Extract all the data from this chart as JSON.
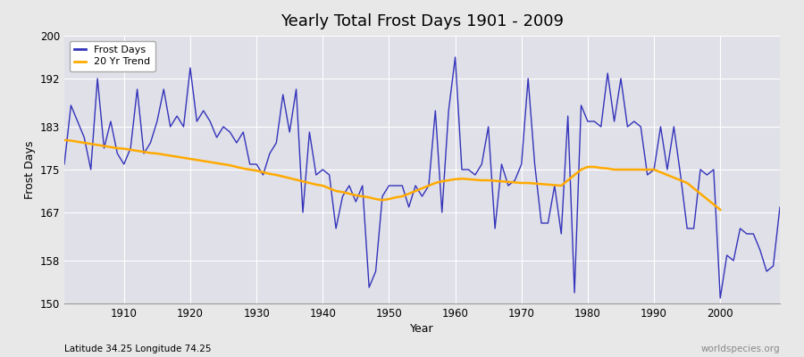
{
  "title": "Yearly Total Frost Days 1901 - 2009",
  "xlabel": "Year",
  "ylabel": "Frost Days",
  "subtitle": "Latitude 34.25 Longitude 74.25",
  "watermark": "worldspecies.org",
  "ylim": [
    150,
    200
  ],
  "yticks": [
    150,
    158,
    167,
    175,
    183,
    192,
    200
  ],
  "fig_bg": "#e8e8e8",
  "plot_bg": "#e0e0e8",
  "grid_color": "#ffffff",
  "line_color": "#3333bb",
  "trend_color": "#ffaa00",
  "years": [
    1901,
    1902,
    1903,
    1904,
    1905,
    1906,
    1907,
    1908,
    1909,
    1910,
    1911,
    1912,
    1913,
    1914,
    1915,
    1916,
    1917,
    1918,
    1919,
    1920,
    1921,
    1922,
    1923,
    1924,
    1925,
    1926,
    1927,
    1928,
    1929,
    1930,
    1931,
    1932,
    1933,
    1934,
    1935,
    1936,
    1937,
    1938,
    1939,
    1940,
    1941,
    1942,
    1943,
    1944,
    1945,
    1946,
    1947,
    1948,
    1949,
    1950,
    1951,
    1952,
    1953,
    1954,
    1955,
    1956,
    1957,
    1958,
    1959,
    1960,
    1961,
    1962,
    1963,
    1964,
    1965,
    1966,
    1967,
    1968,
    1969,
    1970,
    1971,
    1972,
    1973,
    1974,
    1975,
    1976,
    1977,
    1978,
    1979,
    1980,
    1981,
    1982,
    1983,
    1984,
    1985,
    1986,
    1987,
    1988,
    1989,
    1990,
    1991,
    1992,
    1993,
    1994,
    1995,
    1996,
    1997,
    1998,
    1999,
    2000,
    2001,
    2002,
    2003,
    2004,
    2005,
    2006,
    2007,
    2008,
    2009
  ],
  "frost_days": [
    176,
    187,
    184,
    181,
    175,
    192,
    179,
    184,
    178,
    176,
    179,
    190,
    178,
    180,
    184,
    190,
    183,
    185,
    183,
    194,
    184,
    186,
    184,
    181,
    183,
    182,
    180,
    182,
    176,
    176,
    174,
    178,
    180,
    189,
    182,
    190,
    167,
    182,
    174,
    175,
    174,
    164,
    170,
    172,
    169,
    172,
    153,
    156,
    170,
    172,
    172,
    172,
    168,
    172,
    170,
    172,
    186,
    167,
    186,
    196,
    175,
    175,
    174,
    176,
    183,
    164,
    176,
    172,
    173,
    176,
    192,
    176,
    165,
    165,
    172,
    163,
    185,
    152,
    187,
    184,
    184,
    183,
    193,
    184,
    192,
    183,
    184,
    183,
    174,
    175,
    183,
    175,
    183,
    174,
    164,
    164,
    175,
    174,
    175,
    151,
    159,
    158,
    164,
    163,
    163,
    160,
    156,
    157,
    168
  ],
  "trend": [
    180.5,
    180.4,
    180.2,
    180.0,
    179.8,
    179.6,
    179.4,
    179.2,
    179.0,
    178.9,
    178.7,
    178.5,
    178.3,
    178.1,
    178.0,
    177.8,
    177.6,
    177.4,
    177.2,
    177.0,
    176.8,
    176.6,
    176.4,
    176.2,
    176.0,
    175.8,
    175.5,
    175.2,
    175.0,
    174.8,
    174.5,
    174.2,
    174.0,
    173.7,
    173.4,
    173.1,
    172.8,
    172.5,
    172.2,
    172.0,
    171.5,
    171.0,
    170.8,
    170.5,
    170.2,
    170.0,
    169.8,
    169.5,
    169.3,
    169.5,
    169.8,
    170.0,
    170.5,
    171.0,
    171.5,
    172.0,
    172.5,
    172.8,
    173.0,
    173.2,
    173.3,
    173.2,
    173.1,
    173.0,
    173.0,
    172.9,
    172.8,
    172.7,
    172.6,
    172.5,
    172.5,
    172.4,
    172.3,
    172.2,
    172.1,
    172.0,
    173.0,
    174.0,
    175.0,
    175.5,
    175.5,
    175.3,
    175.2,
    175.0,
    175.0,
    175.0,
    175.0,
    175.0,
    175.0,
    175.0,
    174.5,
    174.0,
    173.5,
    173.0,
    172.5,
    171.5,
    170.5,
    169.5,
    168.5,
    167.5,
    null,
    null,
    null,
    null,
    null,
    null,
    null,
    null,
    null
  ]
}
